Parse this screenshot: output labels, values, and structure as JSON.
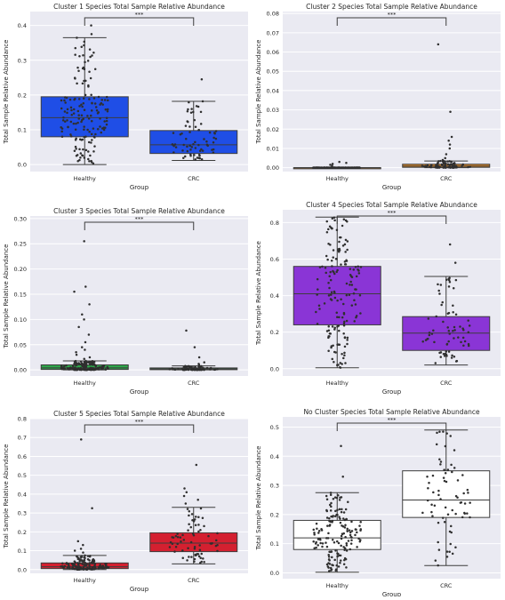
{
  "chart_data": [
    {
      "type": "box",
      "title": "Cluster 1 Species Total Sample Relative Abundance",
      "xlabel": "Group",
      "ylabel": "Total Sample Relative Abundance",
      "categories": [
        "Healthy",
        "CRC"
      ],
      "ylim": [
        -0.02,
        0.44
      ],
      "yticks": [
        0.0,
        0.1,
        0.2,
        0.3,
        0.4
      ],
      "ytick_labels": [
        "0.0",
        "0.1",
        "0.2",
        "0.3",
        "0.4"
      ],
      "significance": "***",
      "color": "#1f4ee6",
      "boxes": [
        {
          "category": "Healthy",
          "whisker_low": 0.0,
          "q1": 0.08,
          "median": 0.135,
          "q3": 0.195,
          "whisker_high": 0.365
        },
        {
          "category": "CRC",
          "whisker_low": 0.012,
          "q1": 0.032,
          "median": 0.057,
          "q3": 0.098,
          "whisker_high": 0.182
        }
      ],
      "outliers": [
        [
          0.4,
          0.375
        ],
        [
          0.245
        ]
      ],
      "n_points": [
        160,
        70
      ]
    },
    {
      "type": "box",
      "title": "Cluster 2 Species Total Sample Relative Abundance",
      "xlabel": "Group",
      "ylabel": "Total Sample Relative Abundance",
      "categories": [
        "Healthy",
        "CRC"
      ],
      "ylim": [
        -0.002,
        0.081
      ],
      "yticks": [
        0.0,
        0.01,
        0.02,
        0.03,
        0.04,
        0.05,
        0.06,
        0.07,
        0.08
      ],
      "ytick_labels": [
        "0.00",
        "0.01",
        "0.02",
        "0.03",
        "0.04",
        "0.05",
        "0.06",
        "0.07",
        "0.08"
      ],
      "significance": "***",
      "color": "#e58a22",
      "boxes": [
        {
          "category": "Healthy",
          "whisker_low": 0.0,
          "q1": 0.0,
          "median": 0.0,
          "q3": 0.0,
          "whisker_high": 0.0
        },
        {
          "category": "CRC",
          "whisker_low": 0.0,
          "q1": 0.0002,
          "median": 0.0008,
          "q3": 0.0018,
          "whisker_high": 0.0035
        }
      ],
      "outliers": [
        [
          0.003,
          0.002,
          0.0025,
          0.0015,
          0.001
        ],
        [
          0.064,
          0.029,
          0.016,
          0.014,
          0.012,
          0.01,
          0.007,
          0.005,
          0.004
        ]
      ],
      "n_points": [
        160,
        70
      ]
    },
    {
      "type": "box",
      "title": "Cluster 3 Species Total Sample Relative Abundance",
      "xlabel": "Group",
      "ylabel": "Total Sample Relative Abundance",
      "categories": [
        "Healthy",
        "CRC"
      ],
      "ylim": [
        -0.012,
        0.305
      ],
      "yticks": [
        0.0,
        0.05,
        0.1,
        0.15,
        0.2,
        0.25,
        0.3
      ],
      "ytick_labels": [
        "0.00",
        "0.05",
        "0.10",
        "0.15",
        "0.20",
        "0.25",
        "0.30"
      ],
      "significance": "***",
      "color": "#2ea64a",
      "boxes": [
        {
          "category": "Healthy",
          "whisker_low": 0.0,
          "q1": 0.001,
          "median": 0.004,
          "q3": 0.01,
          "whisker_high": 0.018
        },
        {
          "category": "CRC",
          "whisker_low": 0.0,
          "q1": 0.0005,
          "median": 0.002,
          "q3": 0.004,
          "whisker_high": 0.008
        }
      ],
      "outliers": [
        [
          0.255,
          0.165,
          0.155,
          0.13,
          0.11,
          0.1,
          0.085,
          0.07,
          0.055,
          0.045,
          0.04,
          0.035,
          0.03,
          0.025,
          0.022
        ],
        [
          0.078,
          0.045,
          0.025,
          0.015,
          0.012,
          0.01
        ]
      ],
      "n_points": [
        160,
        70
      ]
    },
    {
      "type": "box",
      "title": "Cluster 4 Species Total Sample Relative Abundance",
      "xlabel": "Group",
      "ylabel": "Total Sample Relative Abundance",
      "categories": [
        "Healthy",
        "CRC"
      ],
      "ylim": [
        -0.04,
        0.87
      ],
      "yticks": [
        0.0,
        0.2,
        0.4,
        0.6,
        0.8
      ],
      "ytick_labels": [
        "0.0",
        "0.2",
        "0.4",
        "0.6",
        "0.8"
      ],
      "significance": "***",
      "color": "#8a35d6",
      "boxes": [
        {
          "category": "Healthy",
          "whisker_low": 0.005,
          "q1": 0.24,
          "median": 0.41,
          "q3": 0.56,
          "whisker_high": 0.83
        },
        {
          "category": "CRC",
          "whisker_low": 0.02,
          "q1": 0.1,
          "median": 0.195,
          "q3": 0.285,
          "whisker_high": 0.505
        }
      ],
      "outliers": [
        [],
        [
          0.68,
          0.58
        ]
      ],
      "n_points": [
        160,
        70
      ]
    },
    {
      "type": "box",
      "title": "Cluster 5 Species Total Sample Relative Abundance",
      "xlabel": "Group",
      "ylabel": "Total Sample Relative Abundance",
      "categories": [
        "Healthy",
        "CRC"
      ],
      "ylim": [
        -0.02,
        0.8
      ],
      "yticks": [
        0.0,
        0.1,
        0.2,
        0.3,
        0.4,
        0.5,
        0.6,
        0.7,
        0.8
      ],
      "ytick_labels": [
        "0.0",
        "0.1",
        "0.2",
        "0.3",
        "0.4",
        "0.5",
        "0.6",
        "0.7",
        "0.8"
      ],
      "significance": "***",
      "color": "#d42030",
      "boxes": [
        {
          "category": "Healthy",
          "whisker_low": 0.0,
          "q1": 0.005,
          "median": 0.015,
          "q3": 0.035,
          "whisker_high": 0.075
        },
        {
          "category": "CRC",
          "whisker_low": 0.03,
          "q1": 0.095,
          "median": 0.14,
          "q3": 0.195,
          "whisker_high": 0.33
        }
      ],
      "outliers": [
        [
          0.69,
          0.325,
          0.15,
          0.13,
          0.11,
          0.1,
          0.09
        ],
        [
          0.555,
          0.43,
          0.41,
          0.39,
          0.37,
          0.35
        ]
      ],
      "n_points": [
        160,
        70
      ]
    },
    {
      "type": "box",
      "title": "No Cluster Species Total Sample Relative Abundance",
      "xlabel": "Group",
      "ylabel": "Total Sample Relative Abundance",
      "categories": [
        "Healthy",
        "CRC"
      ],
      "ylim": [
        -0.02,
        0.535
      ],
      "yticks": [
        0.0,
        0.1,
        0.2,
        0.3,
        0.4,
        0.5
      ],
      "ytick_labels": [
        "0.0",
        "0.1",
        "0.2",
        "0.3",
        "0.4",
        "0.5"
      ],
      "significance": "***",
      "color": "#ffffff",
      "boxes": [
        {
          "category": "Healthy",
          "whisker_low": 0.002,
          "q1": 0.08,
          "median": 0.12,
          "q3": 0.18,
          "whisker_high": 0.275
        },
        {
          "category": "CRC",
          "whisker_low": 0.025,
          "q1": 0.19,
          "median": 0.25,
          "q3": 0.35,
          "whisker_high": 0.49
        }
      ],
      "outliers": [
        [
          0.435,
          0.33
        ],
        []
      ],
      "n_points": [
        160,
        70
      ]
    }
  ],
  "style": {
    "panel_bg": "#eaeaf2",
    "grid_color": "#ffffff",
    "line_color": "#3d3d3d",
    "point_color": "#2f2f2f",
    "text_color": "#262626"
  }
}
